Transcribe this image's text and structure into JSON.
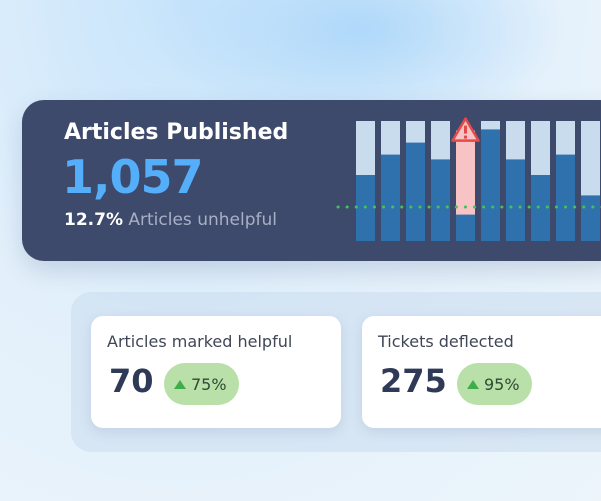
{
  "hero": {
    "title": "Articles Published",
    "value": "1,057",
    "unhelpful_pct": "12.7%",
    "unhelpful_label": "Articles unhelpful"
  },
  "chart_data": {
    "type": "bar",
    "stacked": true,
    "threshold_dotted_line": true,
    "alert_icon": "warning-triangle-icon",
    "alert_bar_index": 4,
    "bars": [
      {
        "total": 1.0,
        "filled": 0.55
      },
      {
        "total": 1.0,
        "filled": 0.72
      },
      {
        "total": 1.0,
        "filled": 0.82
      },
      {
        "total": 1.0,
        "filled": 0.68
      },
      {
        "total": 0.92,
        "filled": 0.22,
        "alert": true
      },
      {
        "total": 1.0,
        "filled": 0.93
      },
      {
        "total": 1.0,
        "filled": 0.68
      },
      {
        "total": 1.0,
        "filled": 0.55
      },
      {
        "total": 1.0,
        "filled": 0.72
      },
      {
        "total": 1.0,
        "filled": 0.38
      }
    ],
    "colors": {
      "filled": "#2f71ad",
      "remainder": "#c9dcee",
      "alert_remainder": "#f7c3c5",
      "threshold": "#3fc35a",
      "alert": "#e34a4a"
    }
  },
  "cards": [
    {
      "label": "Articles marked helpful",
      "value": "70",
      "change": "75%"
    },
    {
      "label": "Tickets deflected",
      "value": "275",
      "change": "95%"
    }
  ]
}
